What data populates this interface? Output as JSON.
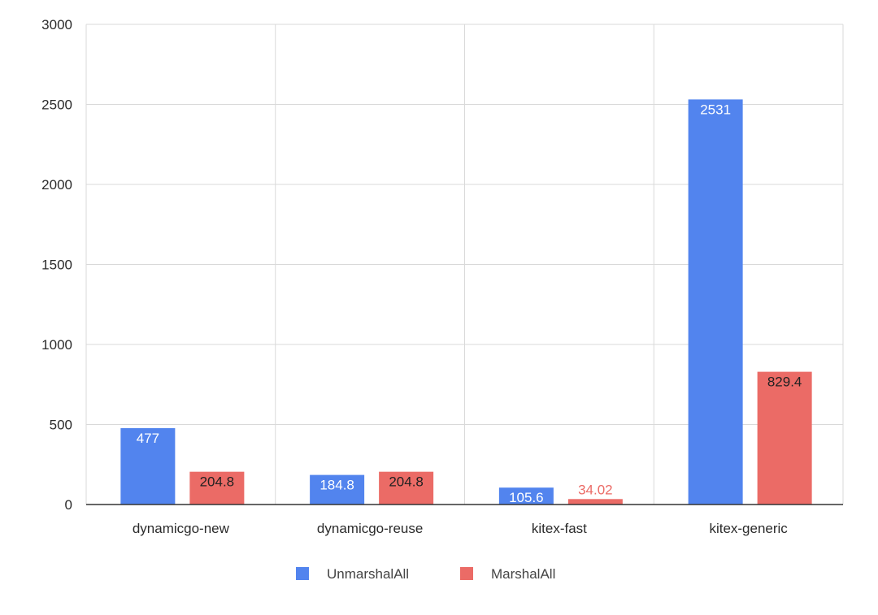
{
  "chart_data": {
    "type": "bar",
    "categories": [
      "dynamicgo-new",
      "dynamicgo-reuse",
      "kitex-fast",
      "kitex-generic"
    ],
    "series": [
      {
        "name": "UnmarshalAll",
        "color": "#5284ee",
        "values": [
          477,
          184.8,
          105.6,
          2531
        ],
        "labels": [
          "477",
          "184.8",
          "105.6",
          "2531"
        ]
      },
      {
        "name": "MarshalAll",
        "color": "#eb6b66",
        "values": [
          204.8,
          204.8,
          34.02,
          829.4
        ],
        "labels": [
          "204.8",
          "204.8",
          "34.02",
          "829.4"
        ]
      }
    ],
    "ylim": [
      0,
      3000
    ],
    "yticks": [
      0,
      500,
      1000,
      1500,
      2000,
      2500,
      3000
    ],
    "ytick_labels": [
      "0",
      "500",
      "1000",
      "1500",
      "2000",
      "2500",
      "3000"
    ],
    "grid": true,
    "legend_position": "bottom-center"
  }
}
